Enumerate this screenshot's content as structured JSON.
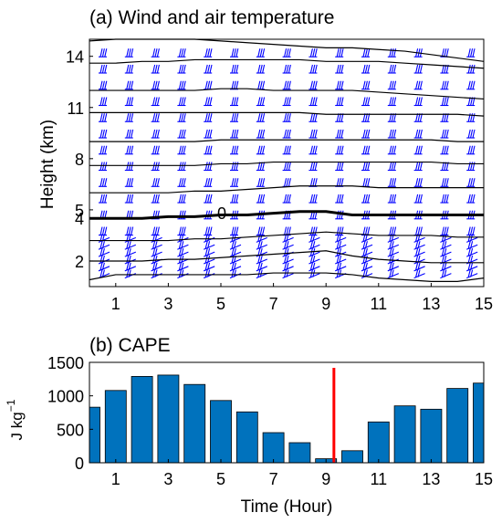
{
  "colors": {
    "bar": "#0072BD",
    "barb": "#0000FF",
    "contour": "#000000",
    "marker": "#FF0000"
  },
  "chart_data": [
    {
      "type": "contour",
      "title": "(a) Wind and air temperature",
      "ylabel": "Height (km)",
      "xlabel": "",
      "xlim": [
        0,
        15
      ],
      "ylim": [
        0.5,
        15
      ],
      "xticks": [
        "1",
        "3",
        "5",
        "7",
        "9",
        "11",
        "13",
        "15"
      ],
      "yticks": [
        "2",
        "4",
        "5",
        "8",
        "11",
        "14"
      ],
      "contour_label": "0",
      "contours": [
        {
          "heights": [
            14.9,
            15.0,
            15.0,
            15.0,
            15.0,
            14.9,
            14.8,
            14.7,
            14.6,
            14.5,
            14.5,
            14.4,
            14.3,
            14.1,
            13.9,
            13.7
          ],
          "bold": false
        },
        {
          "heights": [
            13.6,
            13.6,
            13.7,
            13.7,
            13.8,
            13.8,
            13.8,
            13.8,
            13.8,
            13.7,
            13.7,
            13.7,
            13.6,
            13.5,
            13.4,
            13.3
          ],
          "bold": false
        },
        {
          "heights": [
            12.0,
            12.0,
            12.0,
            12.0,
            12.0,
            12.1,
            12.1,
            12.0,
            12.0,
            12.0,
            12.0,
            11.9,
            11.8,
            11.7,
            11.6,
            11.5
          ],
          "bold": false
        },
        {
          "heights": [
            10.7,
            10.7,
            10.7,
            10.7,
            10.7,
            10.7,
            10.7,
            10.7,
            10.7,
            10.6,
            10.6,
            10.6,
            10.6,
            10.6,
            10.6,
            10.5
          ],
          "bold": false
        },
        {
          "heights": [
            9.0,
            9.0,
            9.0,
            9.0,
            9.0,
            9.1,
            9.1,
            9.1,
            9.1,
            9.1,
            9.1,
            9.1,
            9.1,
            9.1,
            9.0,
            9.0
          ],
          "bold": false
        },
        {
          "heights": [
            7.6,
            7.6,
            7.6,
            7.6,
            7.6,
            7.7,
            7.7,
            7.8,
            7.8,
            7.8,
            7.8,
            7.8,
            7.8,
            7.8,
            7.7,
            7.7
          ],
          "bold": false
        },
        {
          "heights": [
            6.0,
            6.0,
            6.0,
            6.0,
            6.1,
            6.1,
            6.2,
            6.3,
            6.4,
            6.4,
            6.4,
            6.3,
            6.3,
            6.3,
            6.3,
            6.3
          ],
          "bold": false
        },
        {
          "heights": [
            4.5,
            4.5,
            4.5,
            4.6,
            4.6,
            4.7,
            4.7,
            4.8,
            4.9,
            4.9,
            4.7,
            4.7,
            4.7,
            4.7,
            4.7,
            4.7
          ],
          "bold": true
        },
        {
          "heights": [
            3.2,
            3.2,
            3.2,
            3.2,
            3.3,
            3.3,
            3.4,
            3.5,
            3.6,
            3.7,
            3.6,
            3.5,
            3.5,
            3.5,
            3.4,
            3.4
          ],
          "bold": false
        },
        {
          "heights": [
            2.0,
            2.0,
            2.0,
            2.1,
            2.1,
            2.2,
            2.3,
            2.4,
            2.5,
            2.6,
            2.3,
            2.1,
            2.0,
            1.9,
            1.9,
            1.9
          ],
          "bold": false
        },
        {
          "heights": [
            0.9,
            1.2,
            1.2,
            1.2,
            1.2,
            1.2,
            1.2,
            1.3,
            1.3,
            1.3,
            1.2,
            1.0,
            0.9,
            0.8,
            0.8,
            1.0
          ],
          "bold": false
        }
      ]
    },
    {
      "type": "bar",
      "title": "(b) CAPE",
      "ylabel": "J kg",
      "ylabel_superscript": "−1",
      "xlabel": "Time (Hour)",
      "xlim": [
        0,
        15
      ],
      "ylim": [
        0,
        1500
      ],
      "xticks": [
        "1",
        "3",
        "5",
        "7",
        "9",
        "11",
        "13",
        "15"
      ],
      "yticks": [
        "0",
        "500",
        "1000",
        "1500"
      ],
      "x": [
        0,
        1,
        2,
        3,
        4,
        5,
        6,
        7,
        8,
        9,
        10,
        11,
        12,
        13,
        14,
        15
      ],
      "values": [
        830,
        1080,
        1290,
        1310,
        1170,
        930,
        760,
        450,
        300,
        60,
        180,
        610,
        850,
        800,
        1110,
        1190
      ],
      "marker_x": 9.3
    }
  ]
}
